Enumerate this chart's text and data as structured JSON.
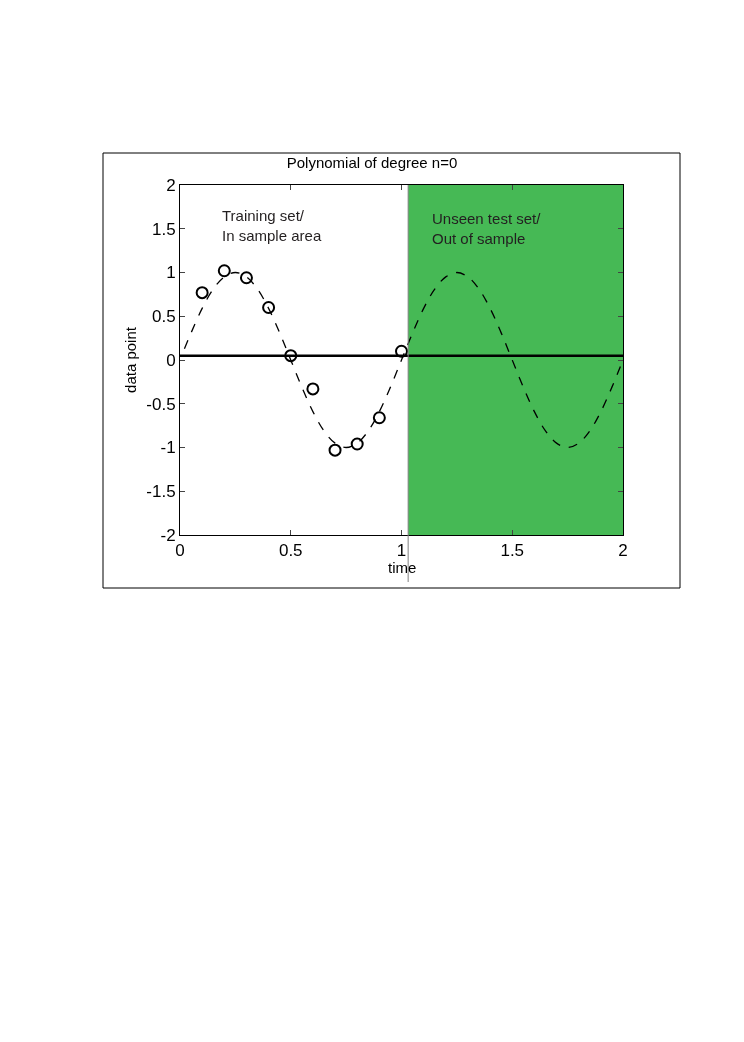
{
  "chart_data": {
    "type": "line",
    "title": "Polynomial of degree n=0",
    "xlabel": "time",
    "ylabel": "data point",
    "annotations": [
      "Training set/\nIn sample area",
      "Unseen test set/\nOut of sample"
    ],
    "xlim": [
      0,
      2
    ],
    "ylim": [
      -2,
      2
    ],
    "xticks": [
      0,
      0.5,
      1,
      1.5,
      2
    ],
    "yticks": [
      -2,
      -1.5,
      -1,
      -0.5,
      0,
      0.5,
      1,
      1.5,
      2
    ],
    "grid": false,
    "bands": [
      {
        "axis": "x",
        "from": 1.03,
        "to": 2,
        "color": "#46b955"
      }
    ],
    "ref_lines": [
      {
        "axis": "x",
        "value": 1.03,
        "color": "#808080",
        "line_style": "solid"
      }
    ],
    "series": [
      {
        "color": "#000000",
        "line_style": "dashed",
        "marker": "none",
        "x": [
          0.02,
          0.05,
          0.1,
          0.15,
          0.2,
          0.25,
          0.3,
          0.35,
          0.4,
          0.45,
          0.5,
          0.55,
          0.6,
          0.65,
          0.7,
          0.75,
          0.8,
          0.85,
          0.9,
          0.95,
          1.0,
          1.05,
          1.1,
          1.15,
          1.2,
          1.25,
          1.3,
          1.35,
          1.4,
          1.45,
          1.5,
          1.55,
          1.6,
          1.65,
          1.7,
          1.75,
          1.8,
          1.85,
          1.9,
          1.95,
          2.0
        ],
        "values": [
          0.13,
          0.31,
          0.59,
          0.81,
          0.95,
          1,
          0.95,
          0.81,
          0.59,
          0.31,
          0,
          -0.31,
          -0.59,
          -0.81,
          -0.95,
          -1,
          -0.95,
          -0.81,
          -0.59,
          -0.31,
          0,
          0.31,
          0.59,
          0.81,
          0.95,
          1,
          0.95,
          0.81,
          0.59,
          0.31,
          0,
          -0.31,
          -0.59,
          -0.81,
          -0.95,
          -1,
          -0.95,
          -0.81,
          -0.59,
          -0.31,
          0
        ]
      },
      {
        "type": "scatter",
        "color": "#000000",
        "marker": "circle",
        "x": [
          0.1,
          0.2,
          0.3,
          0.4,
          0.5,
          0.6,
          0.7,
          0.8,
          0.9,
          1.0
        ],
        "values": [
          0.77,
          1.02,
          0.94,
          0.6,
          0.05,
          -0.33,
          -1.03,
          -0.96,
          -0.66,
          0.1
        ]
      },
      {
        "color": "#000000",
        "line_style": "solid",
        "marker": "none",
        "x": [
          0,
          2
        ],
        "values": [
          0.05,
          0.05
        ]
      }
    ]
  }
}
